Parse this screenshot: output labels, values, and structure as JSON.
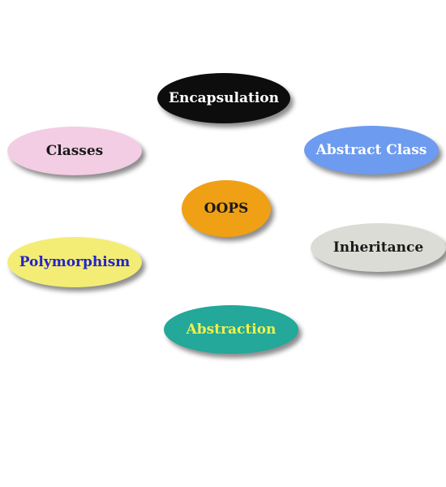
{
  "diagram": {
    "center": {
      "label": "OOPS",
      "fill": "#f0a014",
      "text_color": "#1a1a1a"
    },
    "nodes": [
      {
        "id": "encapsulation",
        "label": "Encapsulation",
        "fill": "#0d0d0d",
        "text_color": "#ffffff"
      },
      {
        "id": "classes",
        "label": "Classes",
        "fill": "#f2cde3",
        "text_color": "#1a1a1a"
      },
      {
        "id": "abstract",
        "label": "Abstract Class",
        "fill": "#6d9bef",
        "text_color": "#ffffff"
      },
      {
        "id": "poly",
        "label": "Polymorphism",
        "fill": "#f3ed75",
        "text_color": "#2424c8"
      },
      {
        "id": "inherit",
        "label": "Inheritance",
        "fill": "#dcdcd6",
        "text_color": "#1a1a1a"
      },
      {
        "id": "abstraction",
        "label": "Abstraction",
        "fill": "#23a89a",
        "text_color": "#f3f04a"
      }
    ]
  }
}
